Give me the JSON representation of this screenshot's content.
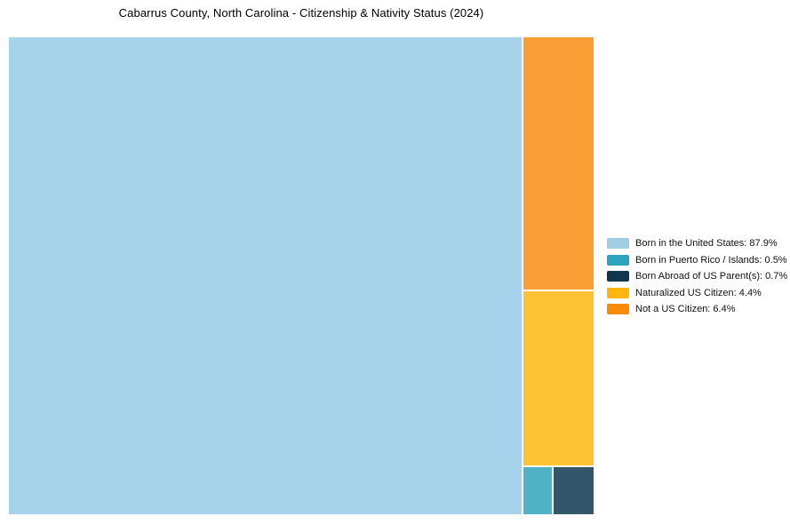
{
  "title": "Cabarrus County, North Carolina - Citizenship & Nativity Status (2024)",
  "chart_data": {
    "type": "treemap",
    "title": "Cabarrus County, North Carolina - Citizenship & Nativity Status (2024)",
    "unit": "%",
    "legend_position": "right",
    "slices": [
      {
        "id": "born_us",
        "label": "Born in the United States",
        "value": 87.9,
        "legend_label": "Born in the United States: 87.9%",
        "color": "#a7d3ea",
        "legend_color": "#a1cde4"
      },
      {
        "id": "born_pr",
        "label": "Born in Puerto Rico / Islands",
        "value": 0.5,
        "legend_label": "Born in Puerto Rico / Islands: 0.5%",
        "color": "#4fb2c6",
        "legend_color": "#2ea3be"
      },
      {
        "id": "born_abroad",
        "label": "Born Abroad of US Parent(s)",
        "value": 0.7,
        "legend_label": "Born Abroad of US Parent(s): 0.7%",
        "color": "#34566a",
        "legend_color": "#11354f"
      },
      {
        "id": "naturalized",
        "label": "Naturalized US Citizen",
        "value": 4.4,
        "legend_label": "Naturalized US Citizen: 4.4%",
        "color": "#fdc335",
        "legend_color": "#fdb512"
      },
      {
        "id": "not_citizen",
        "label": "Not a US Citizen",
        "value": 6.4,
        "legend_label": "Not a US Citizen: 6.4%",
        "color": "#f99e35",
        "legend_color": "#f98a09"
      }
    ]
  }
}
